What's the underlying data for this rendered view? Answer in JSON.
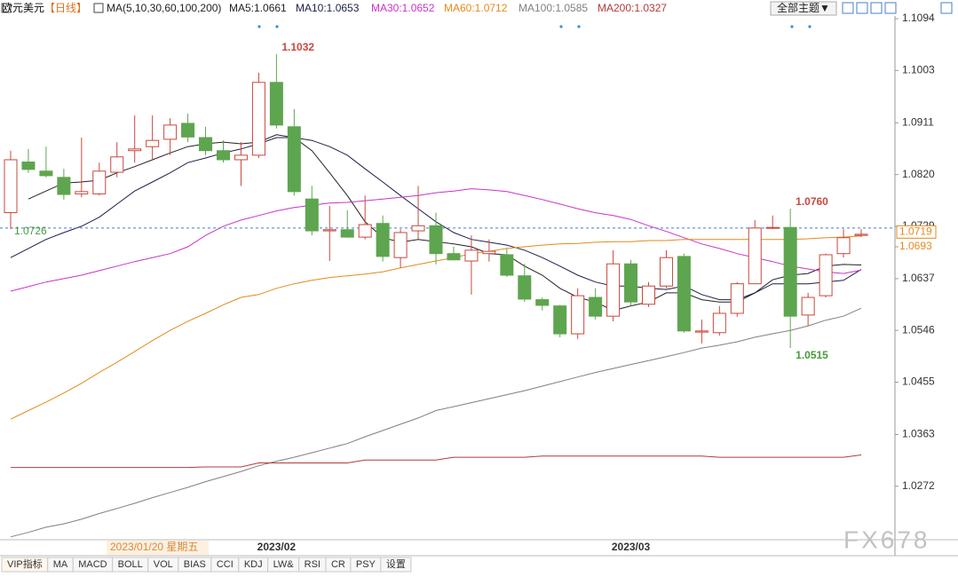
{
  "header": {
    "instrument": "欧元美元",
    "period": "【日线】",
    "indicator": "MA(5,10,30,60,100,200)",
    "theme_button": "全部主题▼"
  },
  "chart_data": {
    "type": "candlestick",
    "crosshair_date": "2023/01/20 星期五",
    "categories": [
      null,
      null,
      null,
      null,
      null,
      null,
      null,
      null,
      null,
      null,
      null,
      null,
      null,
      null,
      null,
      "2023/02",
      null,
      null,
      null,
      null,
      null,
      null,
      null,
      null,
      null,
      null,
      null,
      null,
      null,
      null,
      null,
      null,
      null,
      null,
      null,
      "2023/03",
      null,
      null,
      null,
      null,
      null,
      null,
      null,
      null,
      null,
      null,
      null,
      null,
      null
    ],
    "open": [
      1.0753,
      1.0842,
      1.0826,
      1.0815,
      1.0786,
      1.0786,
      1.0824,
      1.0862,
      1.0869,
      1.0882,
      1.091,
      1.0885,
      1.0862,
      1.0846,
      1.0854,
      1.0982,
      1.0904,
      1.0777,
      1.0721,
      1.0723,
      1.071,
      1.0734,
      1.0674,
      1.0721,
      1.073,
      1.0681,
      1.0668,
      1.0681,
      1.0679,
      1.0642,
      1.06,
      1.0589,
      1.054,
      1.0604,
      1.0571,
      1.0663,
      1.0592,
      1.0624,
      1.0676,
      1.0543,
      1.0542,
      1.0576,
      1.0628,
      1.0726,
      1.0727,
      1.0573,
      1.0607,
      1.0681,
      1.0713
    ],
    "high": [
      1.0862,
      1.0865,
      1.0869,
      1.083,
      1.0885,
      1.0841,
      1.0877,
      1.0924,
      1.0924,
      1.0919,
      1.0927,
      1.0904,
      1.088,
      1.0877,
      1.0999,
      1.1032,
      1.0935,
      1.08,
      1.0765,
      1.0757,
      1.0783,
      1.0748,
      1.0724,
      1.08,
      1.0753,
      1.0693,
      1.0713,
      1.0706,
      1.069,
      1.0663,
      1.0604,
      1.0591,
      1.062,
      1.062,
      1.0687,
      1.067,
      1.0631,
      1.0687,
      1.0681,
      1.0565,
      1.0589,
      1.0631,
      1.074,
      1.0748,
      1.076,
      1.0612,
      1.0681,
      1.0724,
      1.0724
    ],
    "low": [
      1.0724,
      1.0823,
      1.0815,
      1.0776,
      1.078,
      1.0783,
      1.0815,
      1.0841,
      1.0846,
      1.0854,
      1.0877,
      1.0854,
      1.0841,
      1.08,
      1.0849,
      1.0901,
      1.0783,
      1.0713,
      1.0668,
      1.0709,
      1.0706,
      1.0667,
      1.0656,
      1.0706,
      1.0662,
      1.067,
      1.0609,
      1.0667,
      1.064,
      1.0596,
      1.0581,
      1.0534,
      1.0531,
      1.0565,
      1.0562,
      1.0589,
      1.0587,
      1.062,
      1.0542,
      1.0523,
      1.0537,
      1.057,
      1.0628,
      1.0724,
      1.0515,
      1.0554,
      1.0604,
      1.0674,
      1.071
    ],
    "close": [
      1.0846,
      1.0829,
      1.0818,
      1.0785,
      1.079,
      1.0826,
      1.0851,
      1.0865,
      1.088,
      1.0907,
      1.0886,
      1.0862,
      1.0846,
      1.0854,
      1.0982,
      1.0907,
      1.079,
      1.0721,
      1.0723,
      1.071,
      1.0732,
      1.0676,
      1.0718,
      1.073,
      1.0681,
      1.067,
      1.0687,
      1.0685,
      1.0643,
      1.0601,
      1.059,
      1.054,
      1.0607,
      1.0571,
      1.0663,
      1.0596,
      1.0624,
      1.0674,
      1.0545,
      1.0545,
      1.0576,
      1.0628,
      1.0726,
      1.0727,
      1.0571,
      1.0604,
      1.0679,
      1.0709,
      1.0715
    ],
    "up_color": "#c9473c",
    "down_color": "#5ea54f",
    "series": [
      {
        "name": "MA5:1.0661",
        "color": "#222222",
        "values": [
          null,
          1.0777,
          1.0791,
          1.0805,
          1.0807,
          1.081,
          1.0823,
          1.0834,
          1.0846,
          1.0858,
          1.0869,
          1.0874,
          1.0877,
          1.0874,
          1.0877,
          1.089,
          1.0885,
          1.0862,
          1.0823,
          1.0783,
          1.0737,
          1.0709,
          1.0701,
          1.0706,
          1.0702,
          1.0698,
          1.0693,
          1.0681,
          1.0679,
          1.0659,
          1.0643,
          1.062,
          1.0604,
          1.0596,
          1.0581,
          1.0589,
          1.0596,
          1.0612,
          1.0612,
          1.06,
          1.0596,
          1.0596,
          1.0612,
          1.0635,
          1.0643,
          1.0646,
          1.0659,
          1.0662,
          1.0661
        ]
      },
      {
        "name": "MA10:1.0653",
        "color": "#1b1f4a",
        "values": [
          1.0674,
          1.069,
          1.0706,
          1.0718,
          1.0729,
          1.0745,
          1.0768,
          1.0791,
          1.0807,
          1.0823,
          1.0841,
          1.0849,
          1.0858,
          1.0865,
          1.0874,
          1.0885,
          1.0885,
          1.088,
          1.0869,
          1.0854,
          1.083,
          1.0807,
          1.0783,
          1.076,
          1.0737,
          1.0718,
          1.0706,
          1.0701,
          1.0696,
          1.0687,
          1.0674,
          1.0659,
          1.0643,
          1.0631,
          1.0624,
          1.0624,
          1.062,
          1.0618,
          1.0624,
          1.0609,
          1.06,
          1.06,
          1.0612,
          1.0628,
          1.0628,
          1.0628,
          1.0631,
          1.0634,
          1.0653
        ]
      },
      {
        "name": "MA30:1.0652",
        "color": "#c933c9",
        "values": [
          1.0615,
          1.0623,
          1.0631,
          1.0637,
          1.0643,
          1.0651,
          1.0659,
          1.0667,
          1.0674,
          1.0681,
          1.0693,
          1.0713,
          1.0729,
          1.074,
          1.0748,
          1.0756,
          1.0762,
          1.0766,
          1.077,
          1.0771,
          1.0774,
          1.0777,
          1.078,
          1.0783,
          1.0788,
          1.0791,
          1.0795,
          1.0793,
          1.079,
          1.0783,
          1.0776,
          1.0768,
          1.076,
          1.0753,
          1.0748,
          1.0741,
          1.073,
          1.072,
          1.0709,
          1.0698,
          1.069,
          1.0681,
          1.0674,
          1.0667,
          1.0659,
          1.0654,
          1.0649,
          1.0646,
          1.0652
        ]
      },
      {
        "name": "MA60:1.0712",
        "color": "#e5891c",
        "values": [
          1.039,
          1.0405,
          1.042,
          1.0436,
          1.0453,
          1.0472,
          1.049,
          1.0509,
          1.0528,
          1.0546,
          1.0562,
          1.0576,
          1.0591,
          1.0604,
          1.0609,
          1.062,
          1.0628,
          1.0634,
          1.0639,
          1.0642,
          1.0645,
          1.0649,
          1.0656,
          1.0662,
          1.0668,
          1.0674,
          1.0681,
          1.0685,
          1.069,
          1.0693,
          1.0696,
          1.0698,
          1.0699,
          1.0701,
          1.0702,
          1.0702,
          1.0704,
          1.0704,
          1.0706,
          1.0706,
          1.0706,
          1.0706,
          1.0706,
          1.0706,
          1.0706,
          1.0707,
          1.0709,
          1.071,
          1.0712
        ]
      },
      {
        "name": "MA100:1.0585",
        "color": "#808080",
        "values": [
          1.0183,
          1.0191,
          1.02,
          1.0206,
          1.0214,
          1.0224,
          1.0233,
          1.0242,
          1.0252,
          1.0261,
          1.027,
          1.028,
          1.0289,
          1.0298,
          1.0308,
          1.0316,
          1.0323,
          1.0331,
          1.0339,
          1.0347,
          1.0359,
          1.037,
          1.0381,
          1.0392,
          1.0405,
          1.0412,
          1.0419,
          1.0426,
          1.0433,
          1.044,
          1.0448,
          1.0456,
          1.0464,
          1.0472,
          1.0479,
          1.0486,
          1.0493,
          1.05,
          1.0507,
          1.0515,
          1.052,
          1.0526,
          1.0534,
          1.054,
          1.0546,
          1.0554,
          1.0564,
          1.0571,
          1.0585
        ]
      },
      {
        "name": "MA200:1.0327",
        "color": "#b33a3a",
        "values": [
          1.0305,
          1.0305,
          1.0305,
          1.0305,
          1.0305,
          1.0305,
          1.0305,
          1.0305,
          1.0305,
          1.0305,
          1.0305,
          1.0306,
          1.0306,
          1.0306,
          1.0313,
          1.0313,
          1.0313,
          1.0313,
          1.0313,
          1.0313,
          1.0318,
          1.0318,
          1.0318,
          1.0318,
          1.0318,
          1.0323,
          1.0323,
          1.0323,
          1.0323,
          1.0323,
          1.0325,
          1.0325,
          1.0325,
          1.0325,
          1.0325,
          1.0325,
          1.0325,
          1.0325,
          1.0325,
          1.0325,
          1.0323,
          1.0323,
          1.0323,
          1.0323,
          1.0323,
          1.0323,
          1.0323,
          1.0323,
          1.0327
        ]
      }
    ],
    "ylim": [
      1.0178,
      1.1105
    ],
    "yticks": [
      1.1094,
      1.1003,
      1.0911,
      {
        "value": 1.082,
        "label": "1.0820"
      },
      1.0729,
      1.0637,
      1.0546,
      1.0455,
      1.0363,
      1.0272
    ],
    "annotations": [
      1.1032,
      {
        "value": 1.076,
        "label": "1.0760"
      },
      1.0515
    ],
    "price_line": 1.0726,
    "price_tags": [
      1.0719,
      1.0693
    ]
  },
  "tabs": [
    "VIP指标",
    "MA",
    "MACD",
    "BOLL",
    "VOL",
    "BIAS",
    "CCI",
    "KDJ",
    "LW&",
    "RSI",
    "CR",
    "PSY",
    "设置"
  ],
  "watermark": "FX678"
}
